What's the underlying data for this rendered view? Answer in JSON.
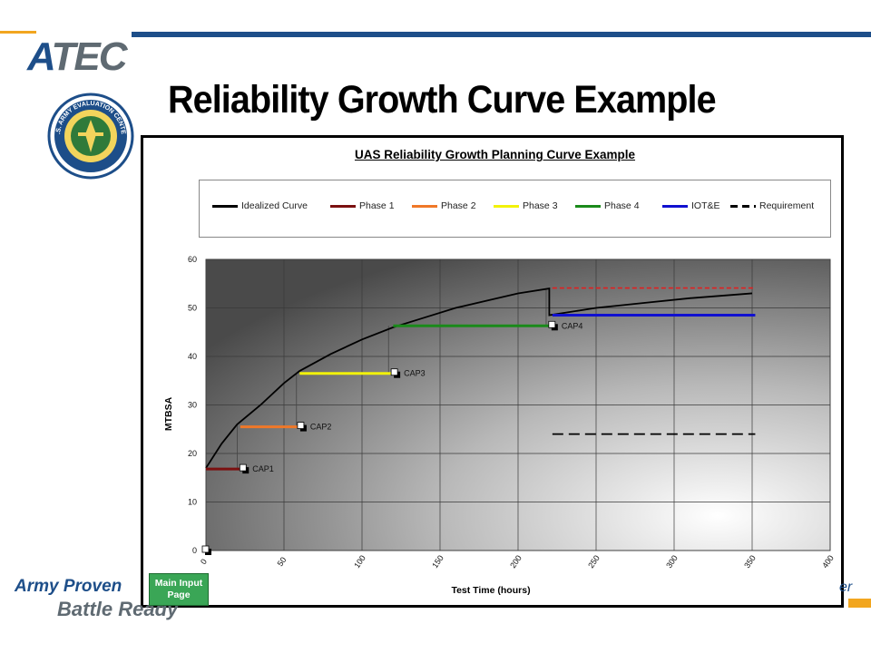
{
  "slide": {
    "title": "Reliability Growth Curve Example",
    "logo_text_a": "A",
    "logo_text_rest": "TEC",
    "seal_text": "U.S. ARMY EVALUATION CENTER",
    "tagline_1": "Army Proven",
    "tagline_2": "Battle Ready",
    "tagline_right": "er",
    "button_label_1": "Main Input",
    "button_label_2": "Page"
  },
  "chart_data": {
    "type": "line",
    "title": "UAS Reliability Growth Planning Curve Example",
    "xlabel": "Test Time (hours)",
    "ylabel": "MTBSA",
    "xlim": [
      0,
      400
    ],
    "ylim": [
      0,
      60
    ],
    "x_ticks": [
      0,
      50,
      100,
      150,
      200,
      250,
      300,
      350,
      400
    ],
    "y_ticks": [
      0,
      10,
      20,
      30,
      40,
      50,
      60
    ],
    "grid": true,
    "legend_position": "top",
    "legend": [
      {
        "name": "Idealized Curve",
        "color": "#000000",
        "style": "solid"
      },
      {
        "name": "Phase 1",
        "color": "#7b1010",
        "style": "solid"
      },
      {
        "name": "Phase 2",
        "color": "#f07828",
        "style": "solid"
      },
      {
        "name": "Phase 3",
        "color": "#f2f20a",
        "style": "solid"
      },
      {
        "name": "Phase 4",
        "color": "#1a8a1a",
        "style": "solid"
      },
      {
        "name": "IOT&E",
        "color": "#1010d0",
        "style": "solid"
      },
      {
        "name": "Requirement",
        "color": "#000000",
        "style": "dashed"
      }
    ],
    "series": [
      {
        "name": "Idealized Curve",
        "color": "#000000",
        "points": [
          [
            0,
            17
          ],
          [
            10,
            22
          ],
          [
            20,
            26
          ],
          [
            35,
            30
          ],
          [
            50,
            34.5
          ],
          [
            60,
            37
          ],
          [
            80,
            40.5
          ],
          [
            100,
            43.5
          ],
          [
            120,
            46
          ],
          [
            140,
            48
          ],
          [
            160,
            50
          ],
          [
            180,
            51.5
          ],
          [
            200,
            53
          ],
          [
            220,
            54
          ],
          [
            220,
            48.5
          ],
          [
            250,
            50
          ],
          [
            280,
            51
          ],
          [
            310,
            52
          ],
          [
            350,
            53
          ]
        ]
      },
      {
        "name": "Phase 1",
        "color": "#7b1010",
        "points": [
          [
            0,
            16.8
          ],
          [
            25,
            16.8
          ]
        ]
      },
      {
        "name": "Phase 2",
        "color": "#f07828",
        "points": [
          [
            22,
            25.5
          ],
          [
            62,
            25.5
          ]
        ]
      },
      {
        "name": "Phase 3",
        "color": "#f2f20a",
        "points": [
          [
            60,
            36.5
          ],
          [
            122,
            36.5
          ]
        ]
      },
      {
        "name": "Phase 4",
        "color": "#1a8a1a",
        "points": [
          [
            120,
            46.3
          ],
          [
            222,
            46.3
          ]
        ]
      },
      {
        "name": "IOT&E",
        "color": "#1010d0",
        "points": [
          [
            222,
            48.5
          ],
          [
            352,
            48.5
          ]
        ]
      },
      {
        "name": "Requirement",
        "color": "#000000",
        "dashed": true,
        "points": [
          [
            222,
            24
          ],
          [
            352,
            24
          ]
        ]
      },
      {
        "name": "Requirement (upper)",
        "color": "#e02020",
        "dashed": true,
        "points": [
          [
            222,
            54.1
          ],
          [
            352,
            54.1
          ]
        ]
      }
    ],
    "annotations": [
      {
        "text": "CAP1",
        "x": 24,
        "y": 16.8
      },
      {
        "text": "CAP2",
        "x": 61,
        "y": 25.5
      },
      {
        "text": "CAP3",
        "x": 121,
        "y": 36.5
      },
      {
        "text": "CAP4",
        "x": 222,
        "y": 46.3
      }
    ],
    "drop_lines": [
      [
        20,
        17,
        26
      ],
      [
        58,
        25.5,
        36.5
      ],
      [
        117,
        36.5,
        46.3
      ],
      [
        218,
        46.3,
        54
      ]
    ],
    "origin_marker": {
      "x": 0,
      "y": 0
    }
  }
}
